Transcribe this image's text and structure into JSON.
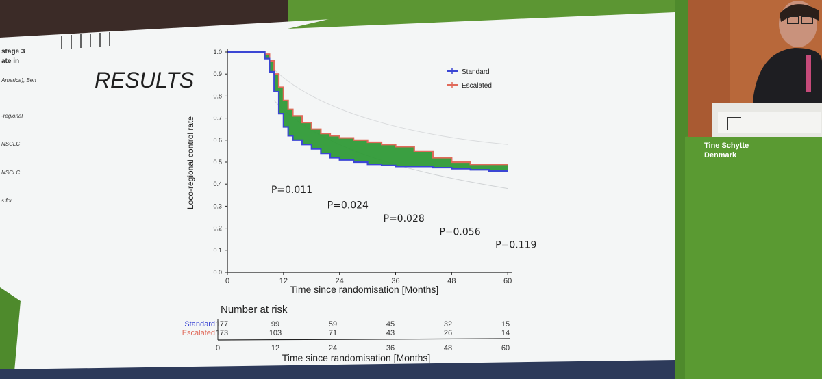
{
  "slide": {
    "heading": "RESULTS",
    "cropped_left_text": [
      {
        "text": "stage 3",
        "style": "bold"
      },
      {
        "text": "ate in",
        "style": "bold"
      },
      {
        "text": "America), Ben",
        "style": "italic"
      },
      {
        "text": "-regional",
        "style": "italic"
      },
      {
        "text": "NSCLC",
        "style": "italic"
      },
      {
        "text": "NSCLC",
        "style": "italic"
      },
      {
        "text": "s for",
        "style": "italic"
      }
    ]
  },
  "speaker": {
    "name": "Tine Schytte",
    "country": "Denmark"
  },
  "colors": {
    "standard": "#3b46d4",
    "escalated": "#e06a5a",
    "difference_fill": "#2f9a37",
    "slide_green": "#5a9a32"
  },
  "chart_data": {
    "type": "line",
    "title": "",
    "xlabel": "Time since randomisation [Months]",
    "ylabel": "Loco-regional control rate",
    "xlim": [
      0,
      62
    ],
    "ylim": [
      0.0,
      1.0
    ],
    "x_ticks": [
      0,
      12,
      24,
      36,
      48,
      60
    ],
    "x_tick_labels": [
      "0",
      "12",
      "24",
      "36",
      "48",
      "60"
    ],
    "y_ticks": [
      0.0,
      0.1,
      0.2,
      0.3,
      0.4,
      0.5,
      0.6,
      0.7,
      0.8,
      0.9,
      1.0
    ],
    "y_tick_labels": [
      "0.0",
      "0.1",
      "0.2",
      "0.3",
      "0.4",
      "0.5",
      "0.6",
      "0.7",
      "0.8",
      "0.9",
      "1.0"
    ],
    "legend_position": "top-right",
    "series": [
      {
        "name": "Standard",
        "x": [
          0,
          7,
          8,
          9,
          10,
          11,
          12,
          13,
          14,
          16,
          18,
          20,
          22,
          24,
          27,
          30,
          33,
          36,
          40,
          44,
          48,
          52,
          56,
          60
        ],
        "y": [
          1.0,
          1.0,
          0.97,
          0.91,
          0.82,
          0.72,
          0.66,
          0.62,
          0.6,
          0.58,
          0.56,
          0.54,
          0.52,
          0.51,
          0.5,
          0.49,
          0.485,
          0.48,
          0.48,
          0.475,
          0.47,
          0.465,
          0.46,
          0.46
        ]
      },
      {
        "name": "Escalated",
        "x": [
          0,
          7,
          8,
          9,
          10,
          11,
          12,
          13,
          14,
          16,
          18,
          20,
          22,
          24,
          27,
          30,
          33,
          36,
          40,
          44,
          48,
          52,
          56,
          60
        ],
        "y": [
          1.0,
          1.0,
          0.99,
          0.96,
          0.9,
          0.84,
          0.78,
          0.74,
          0.71,
          0.68,
          0.65,
          0.63,
          0.62,
          0.61,
          0.6,
          0.59,
          0.58,
          0.57,
          0.55,
          0.52,
          0.5,
          0.49,
          0.49,
          0.49
        ]
      }
    ],
    "annotations": [
      {
        "text": "P=0.011",
        "x": 12,
        "y": 0.36
      },
      {
        "text": "P=0.024",
        "x": 24,
        "y": 0.29
      },
      {
        "text": "P=0.028",
        "x": 36,
        "y": 0.23
      },
      {
        "text": "P=0.056",
        "x": 48,
        "y": 0.17
      },
      {
        "text": "P=0.119",
        "x": 60,
        "y": 0.11
      }
    ],
    "risk_table": {
      "title": "Number at risk",
      "xlabel": "Time since randomisation [Months]",
      "times": [
        0,
        12,
        24,
        36,
        48,
        60
      ],
      "time_labels": [
        "0",
        "12",
        "24",
        "36",
        "48",
        "60"
      ],
      "rows": [
        {
          "name": "Standard",
          "counts": [
            "177",
            "99",
            "59",
            "45",
            "32",
            "15"
          ]
        },
        {
          "name": "Escalated",
          "counts": [
            "173",
            "103",
            "71",
            "43",
            "26",
            "14"
          ]
        }
      ]
    }
  }
}
